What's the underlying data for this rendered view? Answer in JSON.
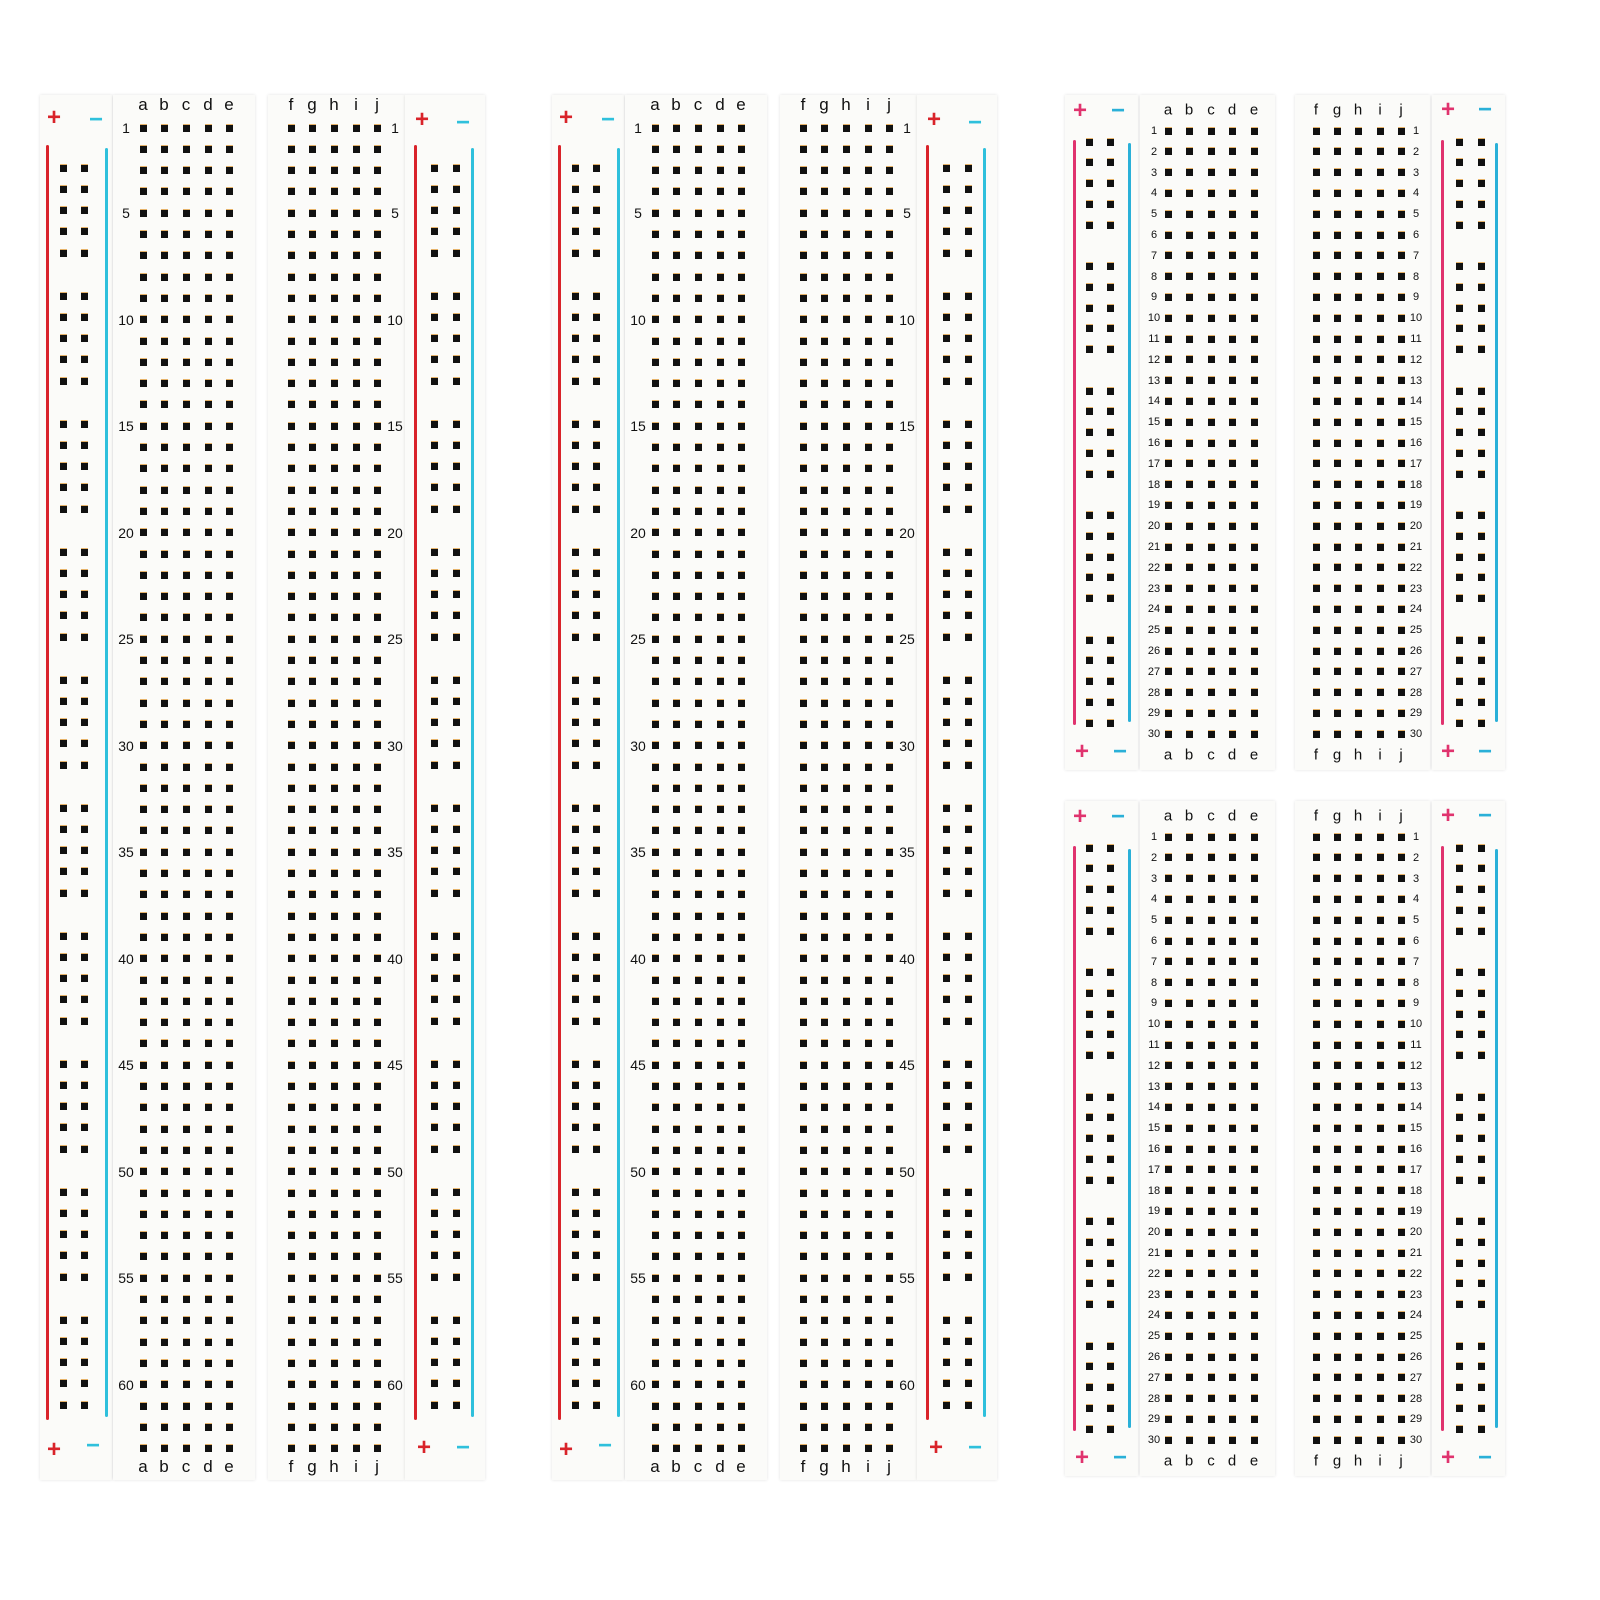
{
  "colors": {
    "positive_rail": "#d9232a",
    "negative_rail": "#2fc0dc",
    "small_positive_rail": "#e0336e",
    "small_negative_rail": "#2ab0d8",
    "hole": "#111111",
    "board": "#fbfbf9"
  },
  "rail_symbols": {
    "plus": "+",
    "minus": "−"
  },
  "boards": [
    {
      "columns_left": [
        "a",
        "b",
        "c",
        "d",
        "e"
      ],
      "columns_right": [
        "f",
        "g",
        "h",
        "i",
        "j"
      ],
      "row_labels": [
        "1",
        "5",
        "10",
        "15",
        "20",
        "25",
        "30",
        "35",
        "40",
        "45",
        "50",
        "55",
        "60"
      ]
    },
    {
      "columns_left": [
        "a",
        "b",
        "c",
        "d",
        "e"
      ],
      "columns_right": [
        "f",
        "g",
        "h",
        "i",
        "j"
      ],
      "row_labels": [
        "1",
        "5",
        "10",
        "15",
        "20",
        "25",
        "30",
        "35",
        "40",
        "45",
        "50",
        "55",
        "60"
      ]
    },
    {
      "columns_left": [
        "a",
        "b",
        "c",
        "d",
        "e"
      ],
      "columns_right": [
        "f",
        "g",
        "h",
        "i",
        "j"
      ],
      "row_labels": [
        "1",
        "2",
        "3",
        "4",
        "5",
        "6",
        "7",
        "8",
        "9",
        "10",
        "11",
        "12",
        "13",
        "14",
        "15",
        "16",
        "17",
        "18",
        "19",
        "20",
        "21",
        "22",
        "23",
        "24",
        "25",
        "26",
        "27",
        "28",
        "29",
        "30"
      ]
    },
    {
      "columns_left": [
        "a",
        "b",
        "c",
        "d",
        "e"
      ],
      "columns_right": [
        "f",
        "g",
        "h",
        "i",
        "j"
      ],
      "row_labels": [
        "1",
        "2",
        "3",
        "4",
        "5",
        "6",
        "7",
        "8",
        "9",
        "10",
        "11",
        "12",
        "13",
        "14",
        "15",
        "16",
        "17",
        "18",
        "19",
        "20",
        "21",
        "22",
        "23",
        "24",
        "25",
        "26",
        "27",
        "28",
        "29",
        "30"
      ]
    }
  ]
}
